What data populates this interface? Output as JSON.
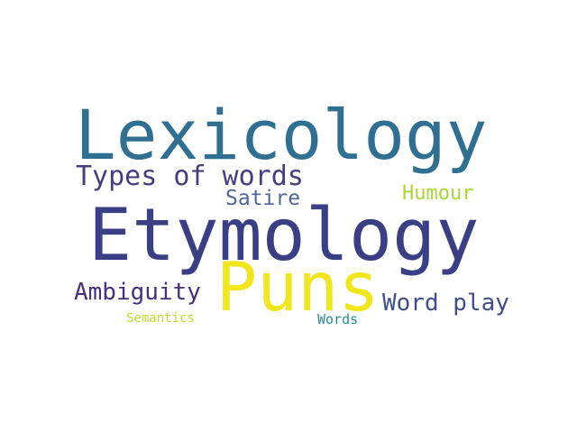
{
  "words": {
    "lexicology": {
      "text": "Lexicology",
      "color": "#2f6f92"
    },
    "types": {
      "text": "Types of words",
      "color": "#463c7e"
    },
    "satire": {
      "text": "Satire",
      "color": "#4e669a"
    },
    "humour": {
      "text": "Humour",
      "color": "#a8d63a"
    },
    "etymology": {
      "text": "Etymology",
      "color": "#3a3f85"
    },
    "puns": {
      "text": "Puns",
      "color": "#f1e51d"
    },
    "ambiguity": {
      "text": "Ambiguity",
      "color": "#46307a"
    },
    "word_play": {
      "text": "Word play",
      "color": "#3e4f8c"
    },
    "semantics": {
      "text": "Semantics",
      "color": "#c1dc33"
    },
    "words": {
      "text": "Words",
      "color": "#2a8a8e"
    }
  }
}
